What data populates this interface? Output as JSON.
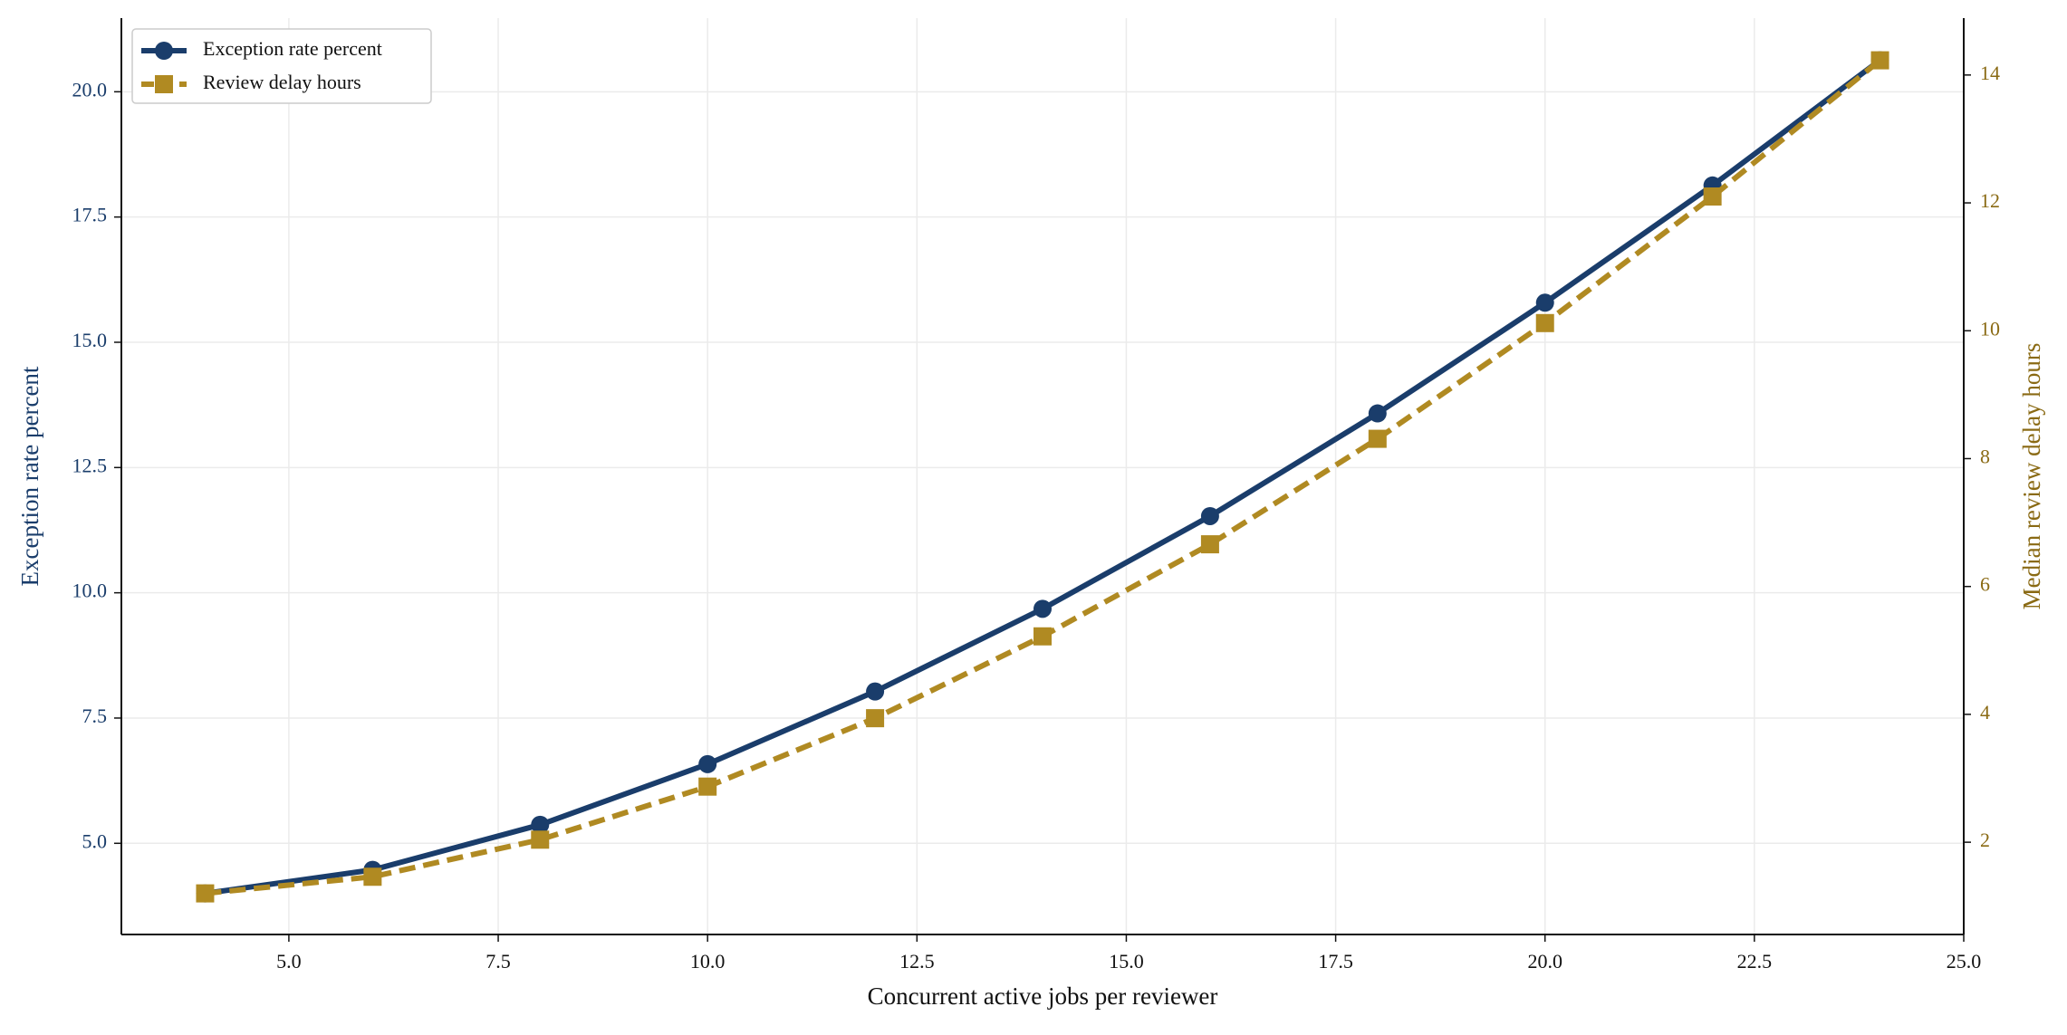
{
  "chart_data": {
    "type": "line",
    "x_label": "Concurrent active jobs per reviewer",
    "y_label": "Exception rate percent",
    "y2_label": "Median review delay hours",
    "x": [
      4,
      6,
      8,
      10,
      12,
      14,
      16,
      18,
      20,
      22,
      24
    ],
    "series": [
      {
        "name": "Exception rate percent",
        "color": "#1a3d6b",
        "marker": "circle",
        "dash": "solid",
        "values": [
          4.0,
          4.47,
          5.37,
          6.58,
          8.03,
          9.68,
          11.53,
          13.58,
          15.79,
          18.13,
          20.63
        ]
      },
      {
        "name": "Review delay hours",
        "color": "#b08a22",
        "marker": "square",
        "dash": "dashed",
        "axis": "y2",
        "values": [
          1.2,
          1.46,
          2.04,
          2.87,
          3.94,
          5.22,
          6.66,
          8.31,
          10.12,
          12.1,
          14.23
        ]
      }
    ],
    "xlim": [
      3.0,
      25.0
    ],
    "xticks": [
      {
        "value": 5,
        "label": "5.0"
      },
      {
        "value": 7.5,
        "label": "7.5"
      },
      {
        "value": 10,
        "label": "10.0"
      },
      {
        "value": 12.5,
        "label": "12.5"
      },
      {
        "value": 15,
        "label": "15.0"
      },
      {
        "value": 17.5,
        "label": "17.5"
      },
      {
        "value": 20,
        "label": "20.0"
      },
      {
        "value": 22.5,
        "label": "22.5"
      },
      {
        "value": 25,
        "label": "25.0"
      }
    ],
    "ylim": [
      3.18,
      21.47
    ],
    "yticks": [
      {
        "value": 5,
        "label": "5.0"
      },
      {
        "value": 7.5,
        "label": "7.5"
      },
      {
        "value": 10,
        "label": "10.0"
      },
      {
        "value": 12.5,
        "label": "12.5"
      },
      {
        "value": 15,
        "label": "15.0"
      },
      {
        "value": 17.5,
        "label": "17.5"
      },
      {
        "value": 20,
        "label": "20.0"
      }
    ],
    "y2lim": [
      0.557,
      14.89
    ],
    "y2ticks": [
      2,
      4,
      6,
      8,
      10,
      12,
      14
    ],
    "grid": true,
    "legend": "upper-left"
  }
}
